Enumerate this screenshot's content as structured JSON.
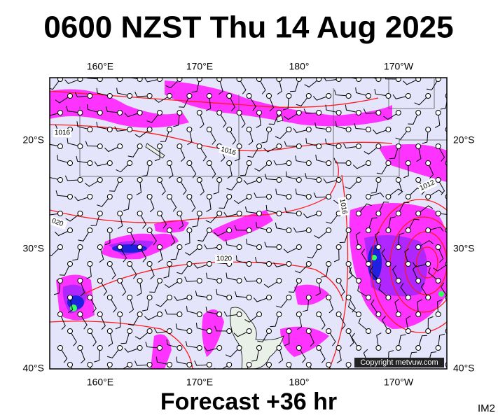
{
  "header": {
    "title": "0600 NZST Thu 14 Aug 2025"
  },
  "map": {
    "lon_labels": [
      "160°E",
      "170°E",
      "180°",
      "170°W"
    ],
    "lat_labels": [
      "20°S",
      "30°S",
      "40°S"
    ],
    "isobar_labels": [
      "1016",
      "1016",
      "1016",
      "1020",
      "1012",
      "020"
    ],
    "copyright": "Copyright metvuw.com"
  },
  "footer": {
    "caption": "Forecast +36 hr",
    "code": "IM2"
  }
}
